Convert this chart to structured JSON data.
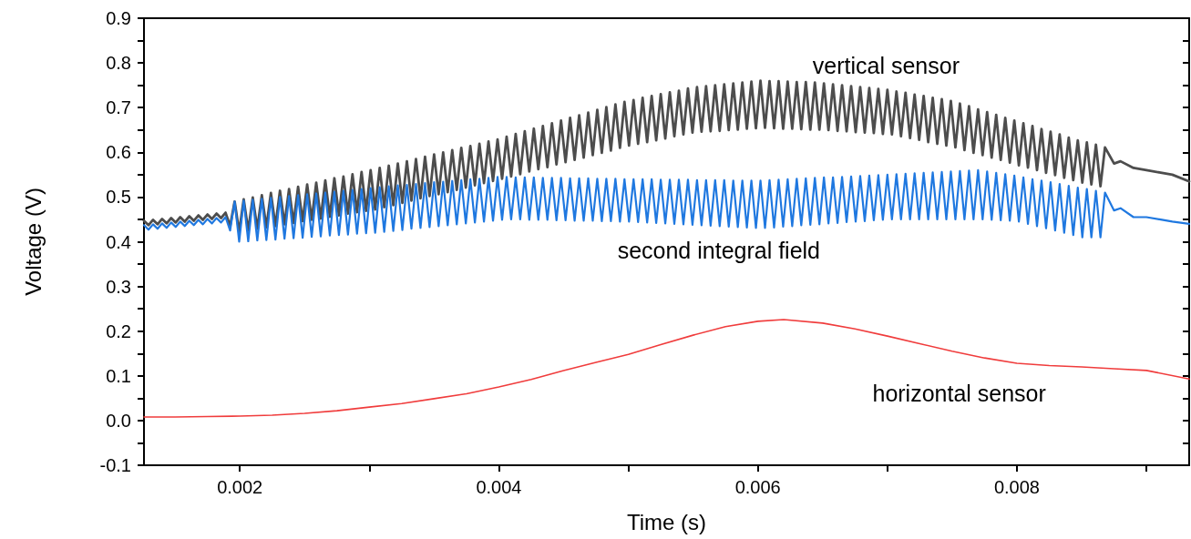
{
  "chart_data": {
    "type": "line",
    "xlabel": "Time (s)",
    "ylabel": "Voltage (V)",
    "xlim": [
      0.00126,
      0.00933
    ],
    "xticks": [
      0.002,
      {
        "value": 0.003,
        "label": null
      },
      0.004,
      {
        "value": 0.005,
        "label": null
      },
      0.006,
      {
        "value": 0.007,
        "label": null
      },
      0.008,
      {
        "value": 0.009,
        "label": null
      }
    ],
    "ylim": [
      -0.1,
      0.9
    ],
    "yticks": [
      -0.1,
      {
        "value": -0.05,
        "label": null
      },
      {
        "value": 0,
        "label": "0.0"
      },
      {
        "value": 0.05,
        "label": null
      },
      0.1,
      {
        "value": 0.15,
        "label": null
      },
      0.2,
      {
        "value": 0.25,
        "label": null
      },
      0.3,
      {
        "value": 0.35,
        "label": null
      },
      0.4,
      {
        "value": 0.45,
        "label": null
      },
      0.5,
      {
        "value": 0.55,
        "label": null
      },
      0.6,
      {
        "value": 0.65,
        "label": null
      },
      0.7,
      {
        "value": 0.75,
        "label": null
      },
      0.8,
      {
        "value": 0.85,
        "label": null
      },
      0.9
    ],
    "x": [
      0.00126,
      0.001295,
      0.00133,
      0.001365,
      0.0014,
      0.001435,
      0.00147,
      0.001505,
      0.00154,
      0.001575,
      0.00161,
      0.001645,
      0.00168,
      0.001715,
      0.00175,
      0.001785,
      0.00182,
      0.001855,
      0.00189,
      0.001925,
      0.00196,
      0.001995,
      0.00203,
      0.002065,
      0.0021,
      0.002135,
      0.00217,
      0.002205,
      0.00224,
      0.002275,
      0.00231,
      0.002345,
      0.00238,
      0.002415,
      0.00245,
      0.002485,
      0.00252,
      0.002555,
      0.00259,
      0.002625,
      0.00266,
      0.002695,
      0.00273,
      0.002765,
      0.0028,
      0.002835,
      0.00287,
      0.002905,
      0.00294,
      0.002975,
      0.00301,
      0.003045,
      0.00308,
      0.003115,
      0.00315,
      0.003185,
      0.00322,
      0.003255,
      0.00329,
      0.003325,
      0.00336,
      0.003395,
      0.00343,
      0.003465,
      0.0035,
      0.003535,
      0.00357,
      0.003605,
      0.00364,
      0.003675,
      0.00371,
      0.003745,
      0.00378,
      0.003815,
      0.00385,
      0.003885,
      0.00392,
      0.003955,
      0.00399,
      0.004025,
      0.00406,
      0.004095,
      0.00413,
      0.004165,
      0.0042,
      0.004235,
      0.00427,
      0.004305,
      0.00434,
      0.004375,
      0.00441,
      0.004445,
      0.00448,
      0.004515,
      0.00455,
      0.004585,
      0.00462,
      0.004655,
      0.00469,
      0.004725,
      0.00476,
      0.004795,
      0.00483,
      0.004865,
      0.0049,
      0.004935,
      0.00497,
      0.005005,
      0.00504,
      0.005075,
      0.00511,
      0.005145,
      0.00518,
      0.005215,
      0.00525,
      0.005285,
      0.00532,
      0.005355,
      0.00539,
      0.005425,
      0.00546,
      0.005495,
      0.00553,
      0.005565,
      0.0056,
      0.005635,
      0.00567,
      0.005705,
      0.00574,
      0.005775,
      0.00581,
      0.005845,
      0.00588,
      0.005915,
      0.00595,
      0.005985,
      0.00602,
      0.006055,
      0.00609,
      0.006125,
      0.00616,
      0.006195,
      0.00623,
      0.006265,
      0.0063,
      0.006335,
      0.00637,
      0.006405,
      0.00644,
      0.006475,
      0.00651,
      0.006545,
      0.00658,
      0.006615,
      0.00665,
      0.006685,
      0.00672,
      0.006755,
      0.00679,
      0.006825,
      0.00686,
      0.006895,
      0.00693,
      0.006965,
      0.007,
      0.007035,
      0.00707,
      0.007105,
      0.00714,
      0.007175,
      0.00721,
      0.007245,
      0.00728,
      0.007315,
      0.00735,
      0.007385,
      0.00742,
      0.007455,
      0.00749,
      0.007525,
      0.00756,
      0.007595,
      0.00763,
      0.007665,
      0.0077,
      0.007735,
      0.00777,
      0.007805,
      0.00784,
      0.007875,
      0.00791,
      0.007945,
      0.00798,
      0.008015,
      0.00805,
      0.008085,
      0.00812,
      0.008155,
      0.00819,
      0.008225,
      0.00826,
      0.008295,
      0.00833,
      0.008365,
      0.0084,
      0.008435,
      0.00847,
      0.008505,
      0.00854,
      0.008575,
      0.00861,
      0.008645,
      0.00868,
      0.00875,
      0.0088,
      0.0089,
      0.009,
      0.0091,
      0.0092,
      0.00933
    ],
    "series": [
      {
        "name": "vertical sensor",
        "color": "#4d4d4d",
        "values": [
          0.447,
          0.437,
          0.449,
          0.439,
          0.451,
          0.441,
          0.453,
          0.443,
          0.455,
          0.445,
          0.457,
          0.447,
          0.459,
          0.449,
          0.461,
          0.451,
          0.463,
          0.453,
          0.465,
          0.435,
          0.49,
          0.422,
          0.495,
          0.425,
          0.499,
          0.429,
          0.504,
          0.432,
          0.509,
          0.435,
          0.514,
          0.439,
          0.518,
          0.442,
          0.523,
          0.446,
          0.528,
          0.449,
          0.532,
          0.452,
          0.537,
          0.456,
          0.542,
          0.459,
          0.546,
          0.463,
          0.551,
          0.466,
          0.556,
          0.469,
          0.56,
          0.472,
          0.565,
          0.477,
          0.57,
          0.482,
          0.575,
          0.487,
          0.58,
          0.492,
          0.585,
          0.497,
          0.59,
          0.502,
          0.595,
          0.506,
          0.6,
          0.511,
          0.605,
          0.516,
          0.61,
          0.521,
          0.614,
          0.526,
          0.619,
          0.531,
          0.624,
          0.536,
          0.629,
          0.541,
          0.635,
          0.546,
          0.641,
          0.551,
          0.647,
          0.557,
          0.653,
          0.562,
          0.659,
          0.567,
          0.665,
          0.573,
          0.671,
          0.578,
          0.677,
          0.583,
          0.683,
          0.588,
          0.689,
          0.594,
          0.695,
          0.599,
          0.701,
          0.604,
          0.707,
          0.61,
          0.713,
          0.615,
          0.717,
          0.619,
          0.722,
          0.623,
          0.726,
          0.627,
          0.73,
          0.631,
          0.734,
          0.636,
          0.738,
          0.64,
          0.743,
          0.644,
          0.746,
          0.646,
          0.748,
          0.647,
          0.75,
          0.648,
          0.752,
          0.65,
          0.754,
          0.651,
          0.756,
          0.653,
          0.758,
          0.654,
          0.76,
          0.655,
          0.759,
          0.654,
          0.759,
          0.653,
          0.758,
          0.653,
          0.757,
          0.652,
          0.757,
          0.651,
          0.756,
          0.651,
          0.754,
          0.65,
          0.752,
          0.648,
          0.75,
          0.647,
          0.748,
          0.645,
          0.746,
          0.644,
          0.744,
          0.643,
          0.742,
          0.641,
          0.74,
          0.64,
          0.736,
          0.636,
          0.733,
          0.632,
          0.729,
          0.628,
          0.726,
          0.623,
          0.722,
          0.619,
          0.719,
          0.615,
          0.715,
          0.611,
          0.709,
          0.605,
          0.703,
          0.599,
          0.696,
          0.594,
          0.69,
          0.588,
          0.684,
          0.583,
          0.677,
          0.577,
          0.671,
          0.571,
          0.665,
          0.566,
          0.659,
          0.56,
          0.652,
          0.554,
          0.646,
          0.549,
          0.64,
          0.543,
          0.633,
          0.538,
          0.627,
          0.532,
          0.622,
          0.528,
          0.617,
          0.524,
          0.611,
          0.575,
          0.58,
          0.565,
          0.56,
          0.555,
          0.55,
          0.535
        ]
      },
      {
        "name": "second integral field",
        "color": "#1f78e0",
        "values": [
          0.437,
          0.427,
          0.439,
          0.429,
          0.441,
          0.431,
          0.443,
          0.433,
          0.445,
          0.435,
          0.447,
          0.437,
          0.449,
          0.439,
          0.451,
          0.441,
          0.453,
          0.443,
          0.455,
          0.425,
          0.49,
          0.4,
          0.492,
          0.401,
          0.494,
          0.403,
          0.496,
          0.404,
          0.498,
          0.405,
          0.5,
          0.407,
          0.502,
          0.408,
          0.504,
          0.409,
          0.506,
          0.411,
          0.508,
          0.412,
          0.51,
          0.414,
          0.512,
          0.415,
          0.514,
          0.416,
          0.516,
          0.418,
          0.518,
          0.419,
          0.52,
          0.42,
          0.522,
          0.422,
          0.524,
          0.424,
          0.526,
          0.426,
          0.527,
          0.429,
          0.529,
          0.431,
          0.531,
          0.433,
          0.533,
          0.435,
          0.534,
          0.437,
          0.536,
          0.439,
          0.538,
          0.441,
          0.54,
          0.443,
          0.541,
          0.445,
          0.543,
          0.447,
          0.545,
          0.449,
          0.545,
          0.45,
          0.544,
          0.45,
          0.544,
          0.449,
          0.544,
          0.449,
          0.543,
          0.449,
          0.543,
          0.448,
          0.543,
          0.448,
          0.542,
          0.447,
          0.542,
          0.447,
          0.542,
          0.447,
          0.541,
          0.446,
          0.541,
          0.446,
          0.541,
          0.445,
          0.54,
          0.445,
          0.54,
          0.444,
          0.54,
          0.443,
          0.54,
          0.442,
          0.539,
          0.441,
          0.539,
          0.44,
          0.539,
          0.439,
          0.539,
          0.438,
          0.538,
          0.437,
          0.538,
          0.436,
          0.538,
          0.435,
          0.538,
          0.434,
          0.537,
          0.433,
          0.537,
          0.432,
          0.537,
          0.431,
          0.537,
          0.431,
          0.538,
          0.432,
          0.539,
          0.434,
          0.54,
          0.435,
          0.541,
          0.437,
          0.542,
          0.438,
          0.543,
          0.439,
          0.544,
          0.441,
          0.544,
          0.442,
          0.545,
          0.444,
          0.546,
          0.445,
          0.547,
          0.446,
          0.548,
          0.448,
          0.549,
          0.449,
          0.55,
          0.45,
          0.551,
          0.45,
          0.552,
          0.45,
          0.553,
          0.45,
          0.554,
          0.45,
          0.555,
          0.45,
          0.556,
          0.45,
          0.557,
          0.45,
          0.558,
          0.45,
          0.559,
          0.45,
          0.56,
          0.45,
          0.557,
          0.449,
          0.554,
          0.448,
          0.551,
          0.447,
          0.548,
          0.445,
          0.544,
          0.44,
          0.54,
          0.435,
          0.537,
          0.43,
          0.533,
          0.425,
          0.529,
          0.42,
          0.525,
          0.415,
          0.521,
          0.41,
          0.518,
          0.41,
          0.514,
          0.41,
          0.51,
          0.47,
          0.475,
          0.455,
          0.455,
          0.45,
          0.445,
          0.44
        ]
      },
      {
        "name": "horizontal sensor",
        "color": "#f03c3c",
        "x": [
          0.00126,
          0.0015,
          0.00175,
          0.002,
          0.00225,
          0.0025,
          0.00275,
          0.003,
          0.00325,
          0.0035,
          0.00375,
          0.004,
          0.00425,
          0.0045,
          0.00475,
          0.005,
          0.00525,
          0.0055,
          0.00575,
          0.006,
          0.0062,
          0.0065,
          0.00675,
          0.007,
          0.00725,
          0.0075,
          0.00775,
          0.008,
          0.00825,
          0.0085,
          0.00875,
          0.009,
          0.00933
        ],
        "values": [
          0.008,
          0.008,
          0.009,
          0.01,
          0.012,
          0.016,
          0.022,
          0.03,
          0.038,
          0.049,
          0.06,
          0.075,
          0.092,
          0.112,
          0.13,
          0.148,
          0.17,
          0.191,
          0.21,
          0.222,
          0.226,
          0.218,
          0.205,
          0.189,
          0.172,
          0.155,
          0.14,
          0.128,
          0.123,
          0.12,
          0.116,
          0.112,
          0.093
        ]
      }
    ],
    "line_style": "solid",
    "grid": false
  }
}
